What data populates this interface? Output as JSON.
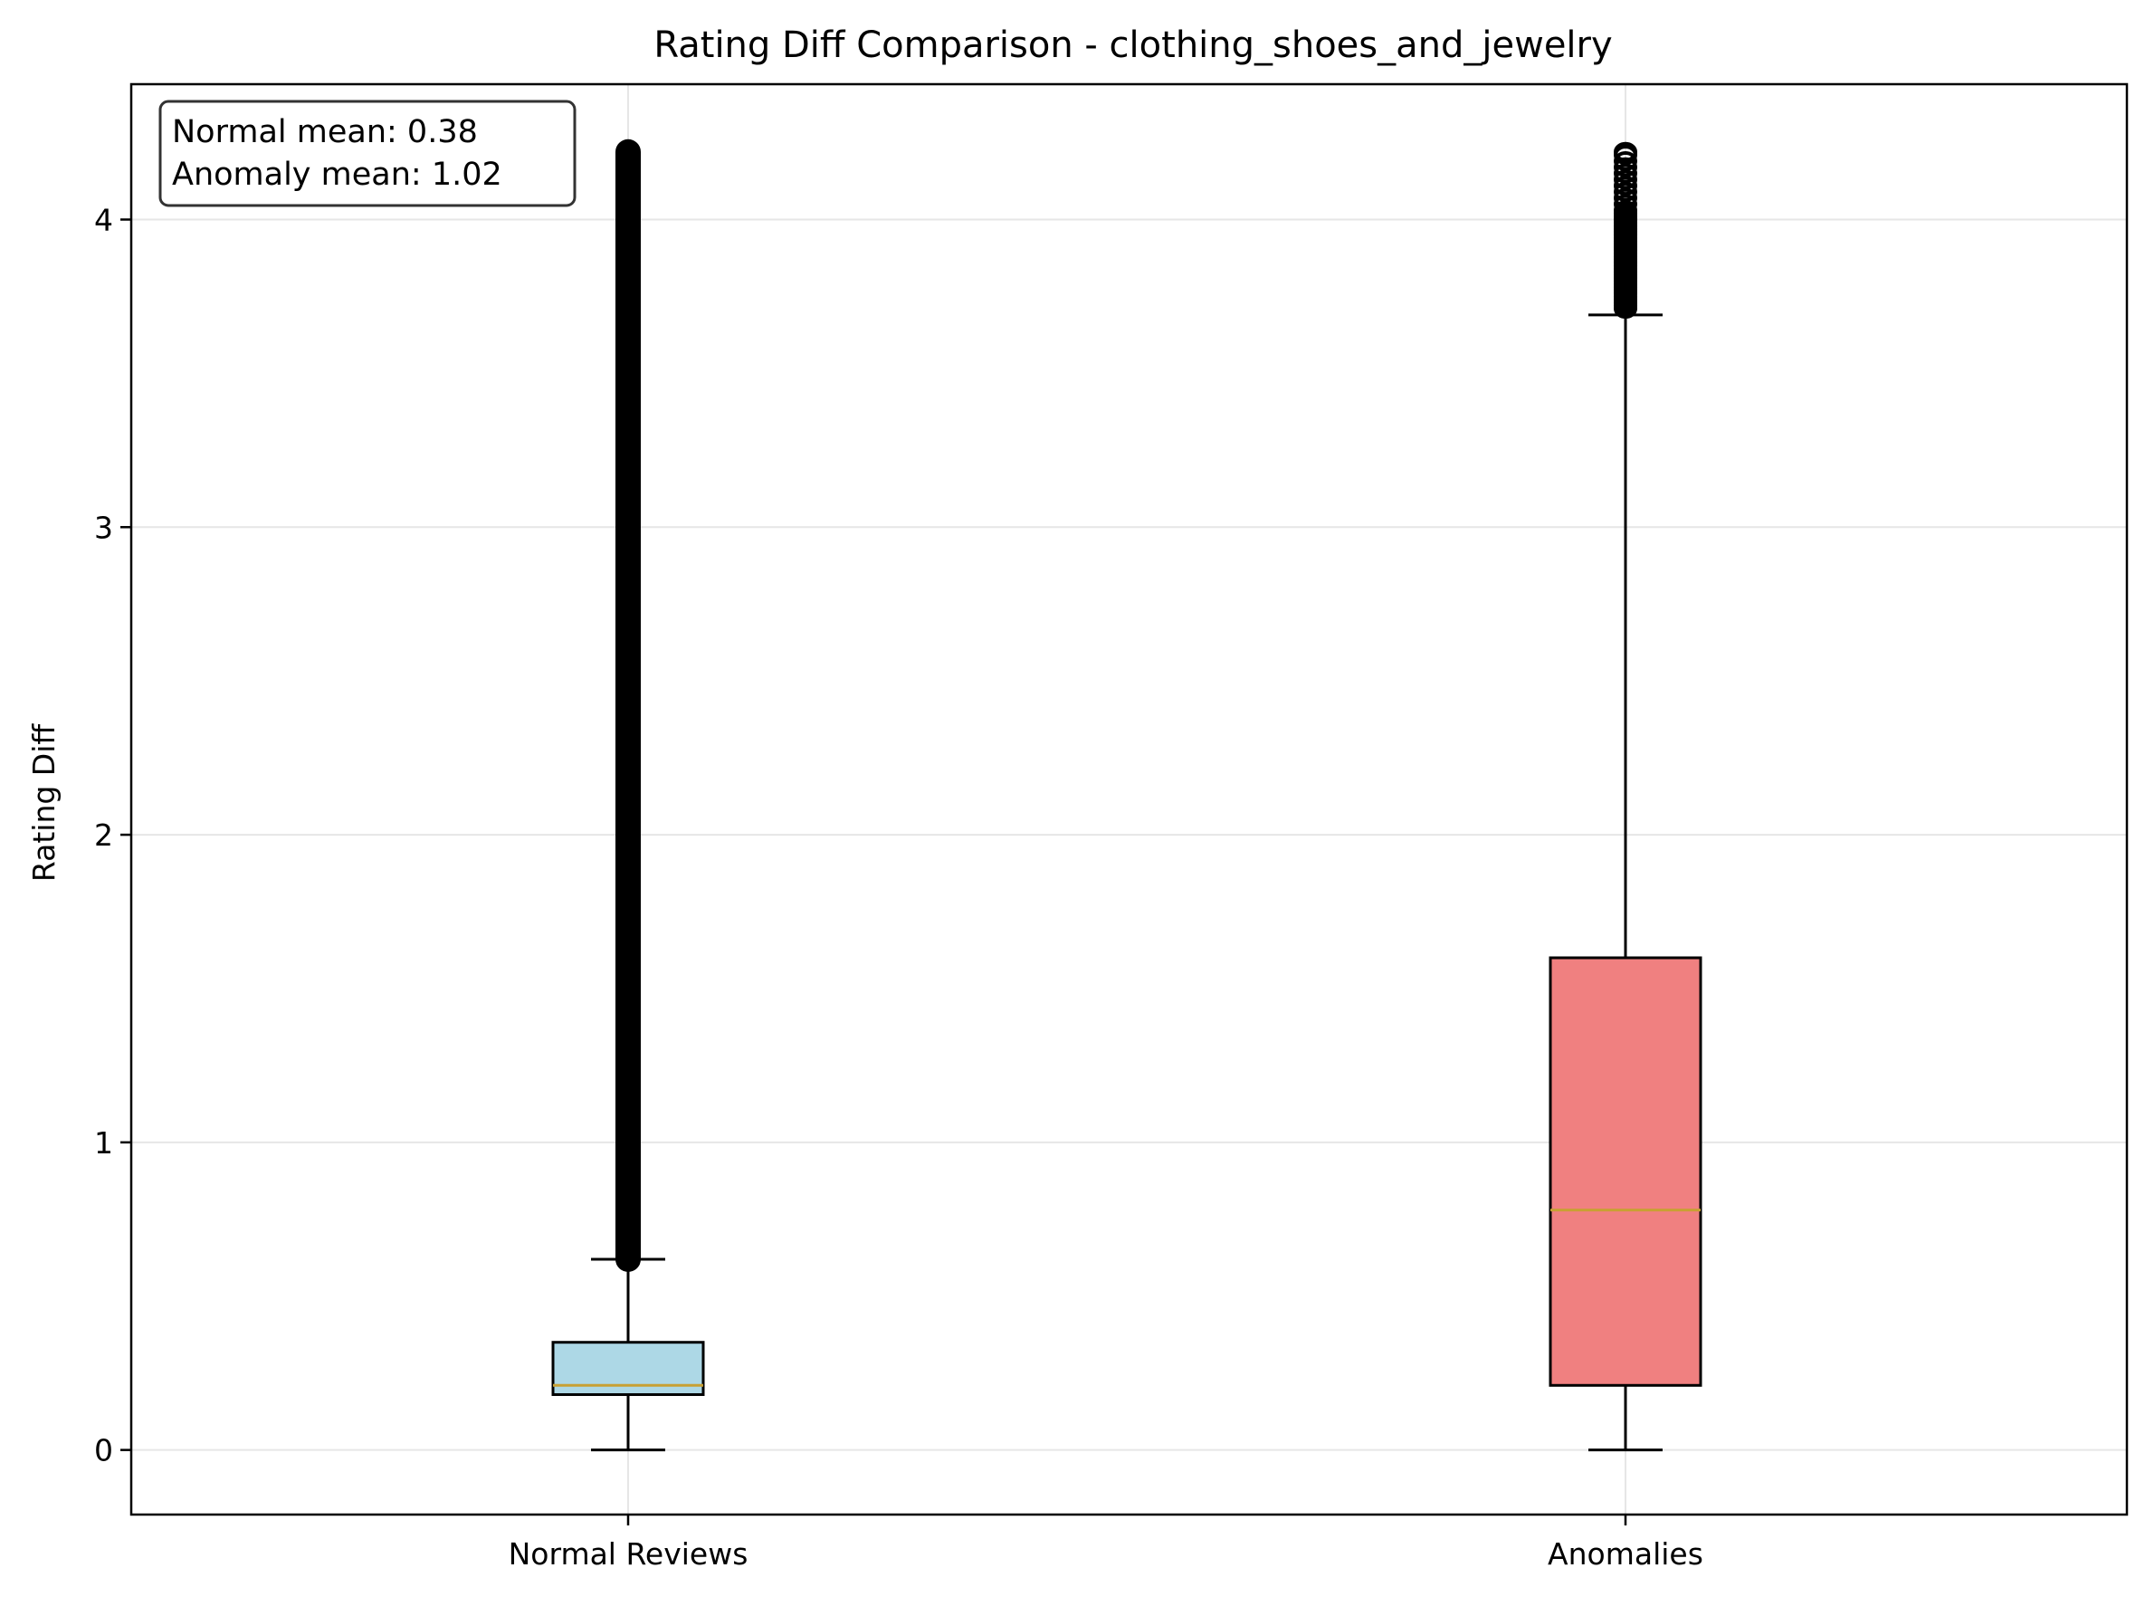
{
  "chart_data": {
    "type": "box",
    "title": "Rating Diff Comparison - clothing_shoes_and_jewelry",
    "xlabel": "",
    "ylabel": "Rating Diff",
    "categories": [
      "Normal Reviews",
      "Anomalies"
    ],
    "ylim": [
      -0.21,
      4.44
    ],
    "yticks": [
      0,
      1,
      2,
      3,
      4
    ],
    "grid": true,
    "annotation": {
      "placement": "top-left",
      "lines": [
        "Normal mean: 0.38",
        "Anomaly mean: 1.02"
      ]
    },
    "series": [
      {
        "category": "Normal Reviews",
        "fill": "#add8e6",
        "whisker_low": 0.0,
        "q1": 0.18,
        "median": 0.21,
        "q3": 0.35,
        "whisker_high": 0.62,
        "outliers_range": [
          0.62,
          4.22
        ],
        "outliers_dense": true
      },
      {
        "category": "Anomalies",
        "fill": "#f08080",
        "whisker_low": 0.0,
        "q1": 0.21,
        "median": 0.78,
        "q3": 1.6,
        "whisker_high": 3.69,
        "outliers": [
          3.71,
          3.72,
          3.73,
          3.74,
          3.75,
          3.76,
          3.77,
          3.78,
          3.79,
          3.8,
          3.81,
          3.82,
          3.83,
          3.84,
          3.85,
          3.86,
          3.87,
          3.88,
          3.89,
          3.9,
          3.91,
          3.92,
          3.93,
          3.94,
          3.95,
          3.96,
          3.97,
          3.98,
          3.99,
          4.0,
          4.01,
          4.02,
          4.03,
          4.05,
          4.07,
          4.09,
          4.11,
          4.13,
          4.15,
          4.17,
          4.19,
          4.21,
          4.22
        ]
      }
    ],
    "colors": {
      "median": "#c8a033",
      "grid": "#e6e6e6",
      "outline": "#000000"
    }
  }
}
